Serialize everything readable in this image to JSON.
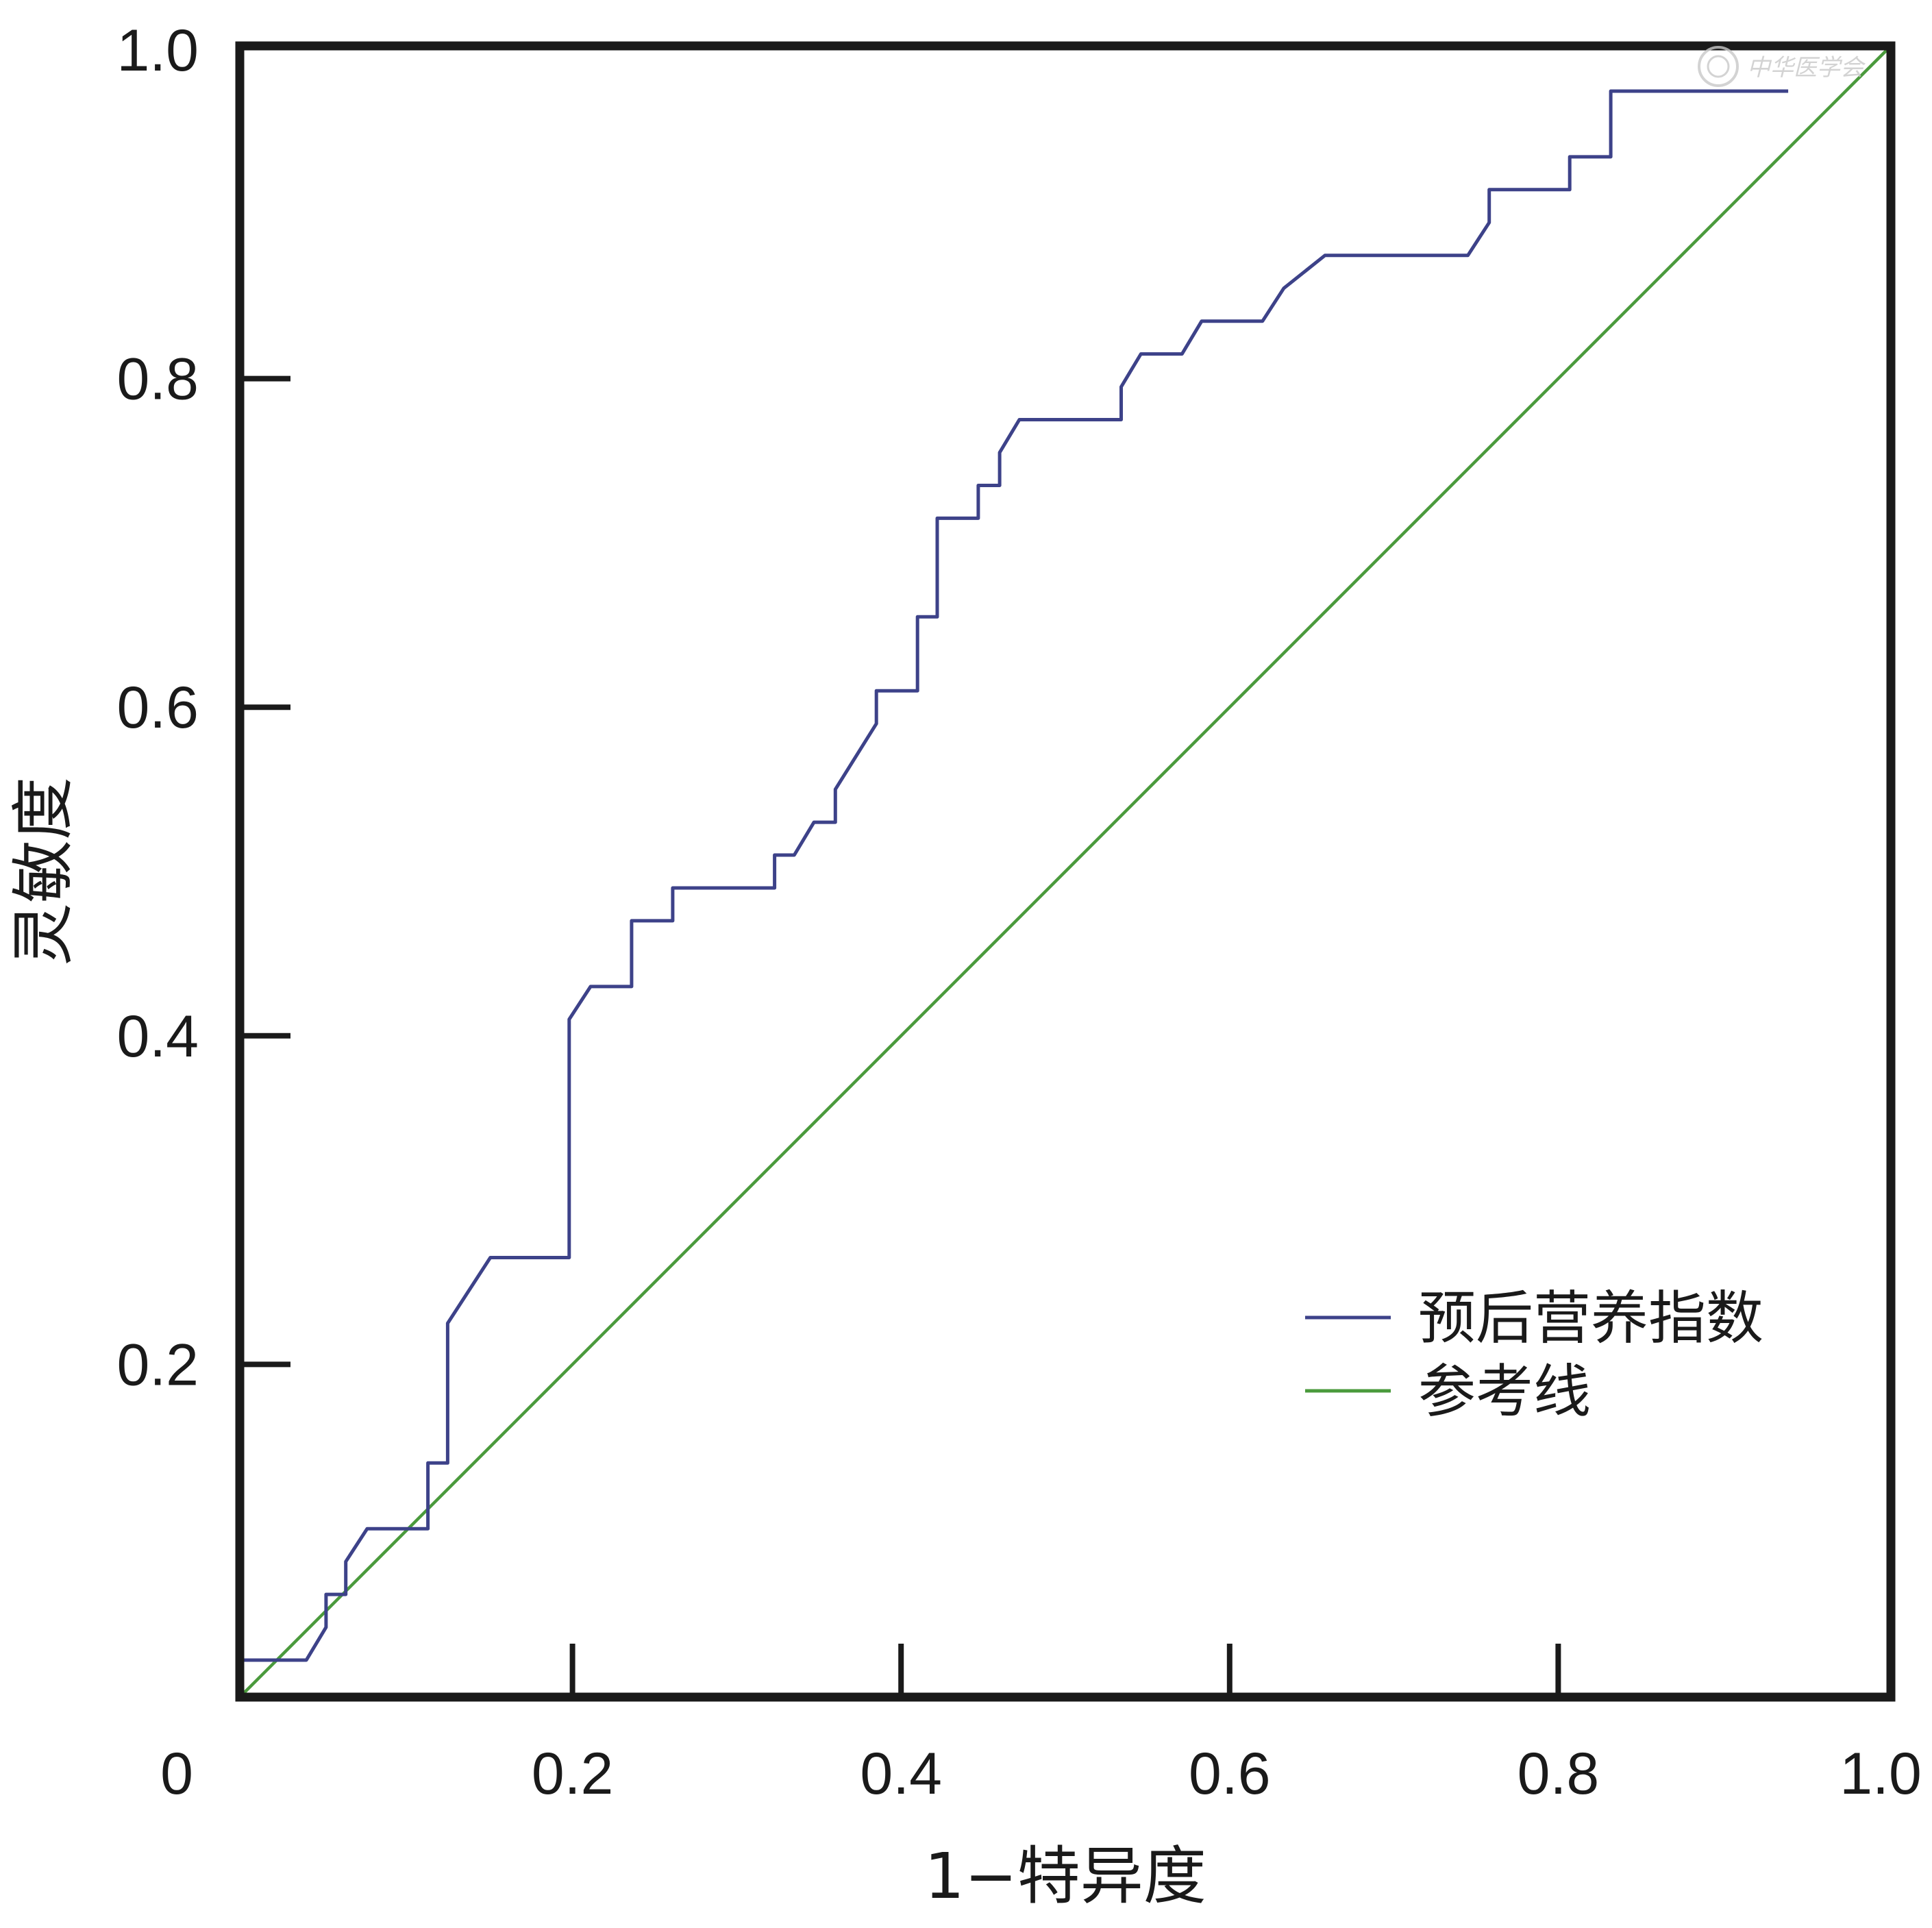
{
  "chart_data": {
    "type": "line",
    "xlabel": "1−特异度",
    "ylabel": "灵敏度",
    "xlim": [
      0,
      1
    ],
    "ylim": [
      0,
      1
    ],
    "x_ticks": [
      {
        "value": 0,
        "label": "0"
      },
      {
        "value": 0.2,
        "label": "0.2"
      },
      {
        "value": 0.4,
        "label": "0.4"
      },
      {
        "value": 0.6,
        "label": "0.6"
      },
      {
        "value": 0.8,
        "label": "0.8"
      },
      {
        "value": 1.0,
        "label": "1.0"
      }
    ],
    "y_ticks": [
      {
        "value": 0.2,
        "label": "0.2"
      },
      {
        "value": 0.4,
        "label": "0.4"
      },
      {
        "value": 0.6,
        "label": "0.6"
      },
      {
        "value": 0.8,
        "label": "0.8"
      },
      {
        "value": 1.0,
        "label": "1.0"
      }
    ],
    "grid": false,
    "legend_position": "bottom-right",
    "series": [
      {
        "name": "预后营养指数",
        "color": "#3d4289",
        "points": [
          [
            0,
            0.02
          ],
          [
            0.038,
            0.02
          ],
          [
            0.05,
            0.04
          ],
          [
            0.05,
            0.06
          ],
          [
            0.062,
            0.06
          ],
          [
            0.062,
            0.08
          ],
          [
            0.075,
            0.1
          ],
          [
            0.112,
            0.1
          ],
          [
            0.112,
            0.14
          ],
          [
            0.124,
            0.14
          ],
          [
            0.124,
            0.225
          ],
          [
            0.15,
            0.265
          ],
          [
            0.198,
            0.265
          ],
          [
            0.198,
            0.41
          ],
          [
            0.211,
            0.43
          ],
          [
            0.236,
            0.43
          ],
          [
            0.236,
            0.47
          ],
          [
            0.261,
            0.47
          ],
          [
            0.261,
            0.49
          ],
          [
            0.323,
            0.49
          ],
          [
            0.323,
            0.51
          ],
          [
            0.335,
            0.51
          ],
          [
            0.347,
            0.53
          ],
          [
            0.36,
            0.53
          ],
          [
            0.36,
            0.55
          ],
          [
            0.385,
            0.59
          ],
          [
            0.385,
            0.61
          ],
          [
            0.41,
            0.61
          ],
          [
            0.41,
            0.655
          ],
          [
            0.422,
            0.655
          ],
          [
            0.422,
            0.715
          ],
          [
            0.447,
            0.715
          ],
          [
            0.447,
            0.735
          ],
          [
            0.46,
            0.735
          ],
          [
            0.46,
            0.755
          ],
          [
            0.472,
            0.775
          ],
          [
            0.534,
            0.775
          ],
          [
            0.534,
            0.795
          ],
          [
            0.546,
            0.815
          ],
          [
            0.571,
            0.815
          ],
          [
            0.583,
            0.835
          ],
          [
            0.62,
            0.835
          ],
          [
            0.633,
            0.855
          ],
          [
            0.658,
            0.875
          ],
          [
            0.745,
            0.875
          ],
          [
            0.758,
            0.895
          ],
          [
            0.758,
            0.915
          ],
          [
            0.807,
            0.915
          ],
          [
            0.807,
            0.935
          ],
          [
            0.832,
            0.935
          ],
          [
            0.832,
            0.975
          ],
          [
            0.94,
            0.975
          ]
        ]
      },
      {
        "name": "参考线",
        "color": "#4a9a3c",
        "points": [
          [
            0,
            0
          ],
          [
            1,
            1
          ]
        ]
      }
    ]
  },
  "watermark": {
    "text": "中华医学会"
  }
}
